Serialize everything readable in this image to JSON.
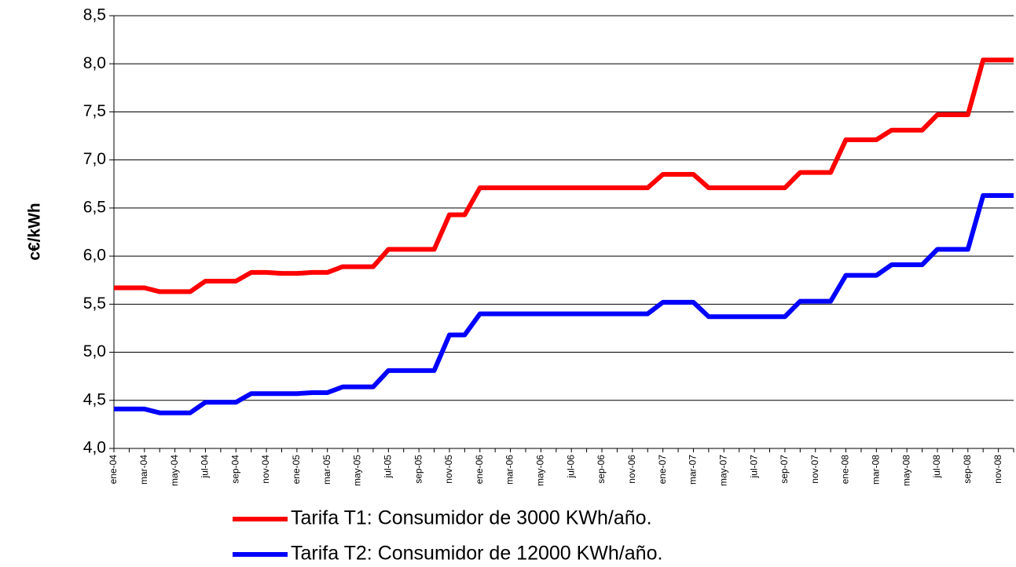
{
  "chart_data": {
    "type": "line",
    "ylabel": "c€/kWh",
    "categories": [
      "ene-04",
      null,
      "mar-04",
      null,
      "may-04",
      null,
      "jul-04",
      null,
      "sep-04",
      null,
      "nov-04",
      null,
      "ene-05",
      null,
      "mar-05",
      null,
      "may-05",
      null,
      "jul-05",
      null,
      "sep-05",
      null,
      "nov-05",
      null,
      "ene-06",
      null,
      "mar-06",
      null,
      "may-06",
      null,
      "jul-06",
      null,
      "sep-06",
      null,
      "nov-06",
      null,
      "ene-07",
      null,
      "mar-07",
      null,
      "may-07",
      null,
      "jul-07",
      null,
      "sep-07",
      null,
      "nov-07",
      null,
      "ene-08",
      null,
      "mar-08",
      null,
      "may-08",
      null,
      "jul-08",
      null,
      "sep-08",
      null,
      "nov-08",
      null
    ],
    "series": [
      {
        "name": "Tarifa T1: Consumidor de 3000 KWh/año.",
        "color": "#ff0000",
        "values": [
          5.67,
          5.67,
          5.67,
          5.63,
          5.63,
          5.63,
          5.74,
          5.74,
          5.74,
          5.83,
          5.83,
          5.82,
          5.82,
          5.83,
          5.83,
          5.89,
          5.89,
          5.89,
          6.07,
          6.07,
          6.07,
          6.07,
          6.43,
          6.43,
          6.71,
          6.71,
          6.71,
          6.71,
          6.71,
          6.71,
          6.71,
          6.71,
          6.71,
          6.71,
          6.71,
          6.71,
          6.85,
          6.85,
          6.85,
          6.71,
          6.71,
          6.71,
          6.71,
          6.71,
          6.71,
          6.87,
          6.87,
          6.87,
          7.21,
          7.21,
          7.21,
          7.31,
          7.31,
          7.31,
          7.47,
          7.47,
          7.47,
          8.04,
          8.04,
          8.04
        ]
      },
      {
        "name": "Tarifa T2: Consumidor de 12000 KWh/año.",
        "color": "#0000ff",
        "values": [
          4.41,
          4.41,
          4.41,
          4.37,
          4.37,
          4.37,
          4.48,
          4.48,
          4.48,
          4.57,
          4.57,
          4.57,
          4.57,
          4.58,
          4.58,
          4.64,
          4.64,
          4.64,
          4.81,
          4.81,
          4.81,
          4.81,
          5.18,
          5.18,
          5.4,
          5.4,
          5.4,
          5.4,
          5.4,
          5.4,
          5.4,
          5.4,
          5.4,
          5.4,
          5.4,
          5.4,
          5.52,
          5.52,
          5.52,
          5.37,
          5.37,
          5.37,
          5.37,
          5.37,
          5.37,
          5.53,
          5.53,
          5.53,
          5.8,
          5.8,
          5.8,
          5.91,
          5.91,
          5.91,
          6.07,
          6.07,
          6.07,
          6.63,
          6.63,
          6.63
        ]
      }
    ],
    "ylim": [
      4.0,
      8.5
    ],
    "yticks": [
      {
        "value": 4.0,
        "label": "4,0"
      },
      {
        "value": 4.5,
        "label": "4,5"
      },
      {
        "value": 5.0,
        "label": "5,0"
      },
      {
        "value": 5.5,
        "label": "5,5"
      },
      {
        "value": 6.0,
        "label": "6,0"
      },
      {
        "value": 6.5,
        "label": "6,5"
      },
      {
        "value": 7.0,
        "label": "7,0"
      },
      {
        "value": 7.5,
        "label": "7,5"
      },
      {
        "value": 8.0,
        "label": "8,0"
      },
      {
        "value": 8.5,
        "label": "8,5"
      }
    ],
    "grid": true
  }
}
